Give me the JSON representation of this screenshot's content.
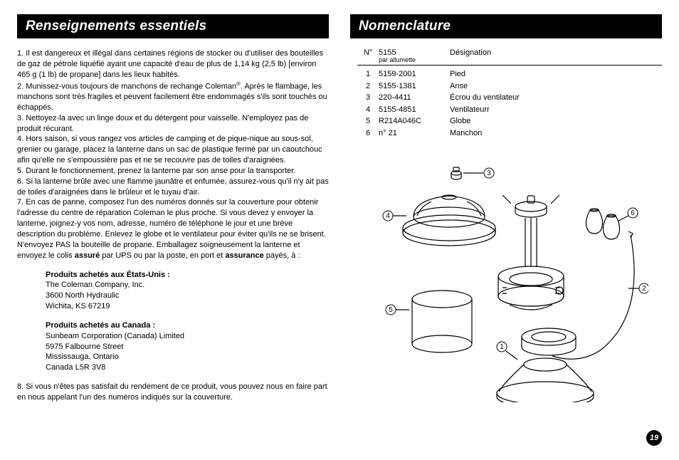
{
  "left": {
    "heading": "Renseignements essentiels",
    "p1": "1. Il est dangereux et illégal dans certaines régions de stocker ou d'utiliser des bouteilles de gaz de pétrole liquéfié ayant une capacité d'eau de plus de 1,14 kg (2,5 lb) [environ 465 g (1 lb) de propane] dans les lieux habités.",
    "p2a": "2. Munissez-vous toujours de manchons de rechange Coleman",
    "p2b": ". Après le flambage, les manchons sont très fragiles et peuvent facilement être endommagés s'ils sont touchés ou échappés.",
    "p3": "3. Nettoyez-la avec un linge doux et du détergent pour vaisselle. N'employez pas de produit récurant.",
    "p4": "4. Hors saison, si vous rangez vos articles de camping et de pique-nique au sous-sol, grenier ou garage, placez la lanterne dans un sac de plastique fermé par un caoutchouc afin qu'elle ne s'empoussière pas et ne se recouvre pas de toiles d'araignées.",
    "p5": "5. Durant le fonctionnement, prenez la lanterne par son anse pour la transporter.",
    "p6": "6. Si la lanterne brûle avec une flamme jaunâtre et enfumée, assurez-vous qu'il n'y ait pas de toiles d'araignées dans le brûleur et le tuyau d'air.",
    "p7a": "7. En cas de panne, composez l'un des numéros donnés sur la couverture pour obtenir l'adresse du centre de réparation Coleman le plus proche. Si vous devez y envoyer la lanterne, joignez-y vos nom, adresse, numéro de téléphone le jour et une brève description du problème. Enlevez le globe et le ventilateur pour éviter qu'ils ne se brisent. N'envoyez PAS la bouteille de propane. Emballagez soigneusement la lanterne et envoyez le colis ",
    "p7b": "assuré",
    "p7c": " par UPS ou par la poste, en port et ",
    "p7d": "assurance",
    "p7e": " payés, à :",
    "addr_us_head": "Produits achetés aux États-Unis :",
    "addr_us_1": "The Coleman Company, Inc.",
    "addr_us_2": "3600 North Hydraulic",
    "addr_us_3": "Wichita, KS 67219",
    "addr_ca_head": "Produits achetés au Canada :",
    "addr_ca_1": "Sunbeam Corporation (Canada) Limited",
    "addr_ca_2": "5975 Falbourne Street",
    "addr_ca_3": "Mississauga, Ontario",
    "addr_ca_4": "Canada L5R 3V8",
    "p8": "8. Si vous n'êtes pas satisfait du rendement de ce produit, vous pouvez nous en faire part en nous appelant l'un des numéros indiqués sur la couverture."
  },
  "right": {
    "heading": "Nomenclature",
    "table": {
      "head_no": "N°",
      "head_model": "5155",
      "head_model_sub": "par allumette",
      "head_desig": "Désignation",
      "rows": [
        {
          "no": "1",
          "model": "5159-2001",
          "desig": "Pied"
        },
        {
          "no": "2",
          "model": "5155-1381",
          "desig": "Anse"
        },
        {
          "no": "3",
          "model": "220-4411",
          "desig": "Écrou du ventilateur"
        },
        {
          "no": "4",
          "model": "5155-4851",
          "desig": "Ventilateurr"
        },
        {
          "no": "5",
          "model": "R214A046C",
          "desig": "Globe"
        },
        {
          "no": "6",
          "model": "n° 21",
          "desig": "Manchon"
        }
      ]
    },
    "callouts": {
      "c1": "1",
      "c2": "2",
      "c3": "3",
      "c4": "4",
      "c5": "5",
      "c6": "6"
    }
  },
  "page_number": "19"
}
